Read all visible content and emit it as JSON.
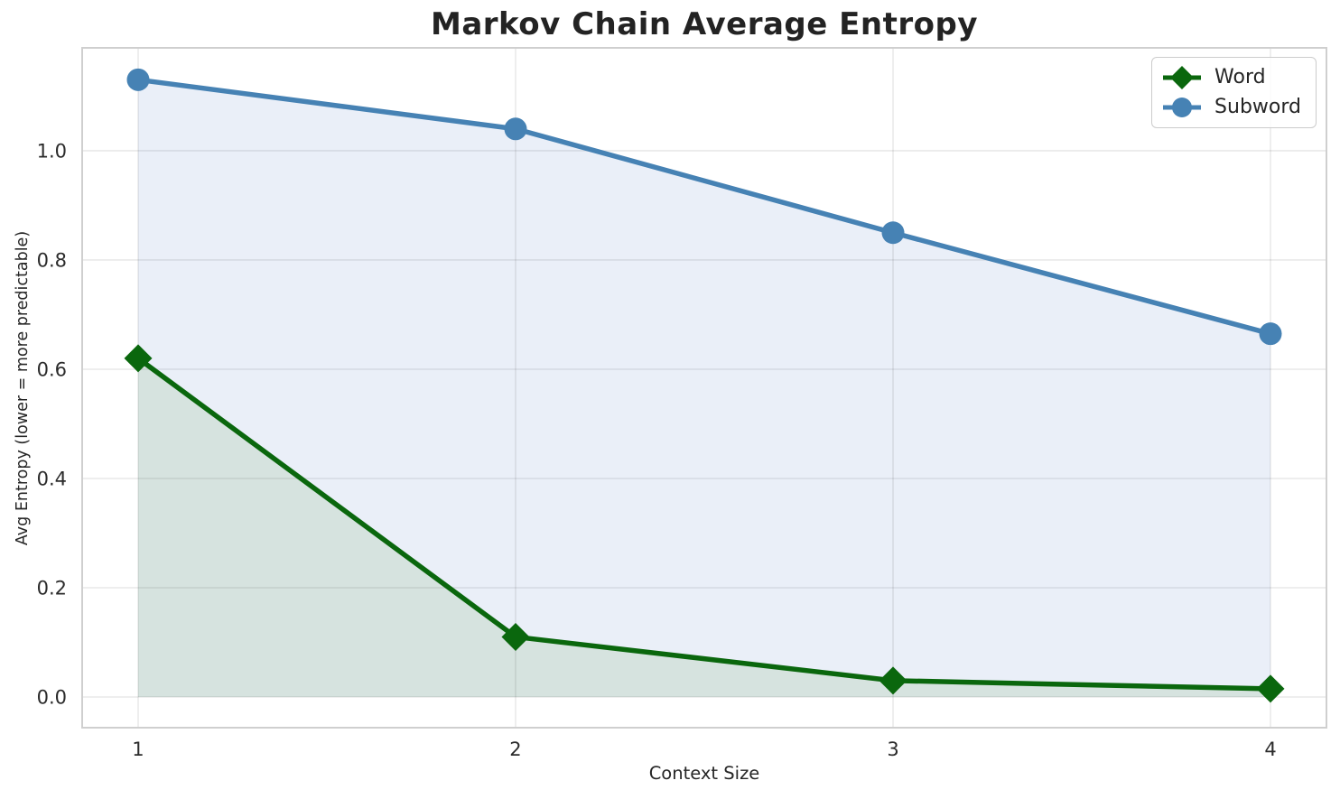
{
  "chart_data": {
    "type": "line",
    "title": "Markov Chain Average Entropy",
    "xlabel": "Context Size",
    "ylabel": "Avg Entropy (lower = more predictable)",
    "x": [
      1,
      2,
      3,
      4
    ],
    "series": [
      {
        "name": "Word",
        "values": [
          0.62,
          0.11,
          0.03,
          0.015
        ],
        "color": "#0a670d",
        "fill_color": "#d6e3df",
        "marker": "diamond"
      },
      {
        "name": "Subword",
        "values": [
          1.13,
          1.04,
          0.85,
          0.665
        ],
        "color": "#4682b4",
        "fill_color": "#eaeff8",
        "marker": "circle"
      }
    ],
    "xticks": {
      "values": [
        1,
        2,
        3,
        4
      ],
      "labels": [
        "1",
        "2",
        "3",
        "4"
      ]
    },
    "yticks": {
      "values": [
        0.0,
        0.2,
        0.4,
        0.6,
        0.8,
        1.0
      ],
      "labels": [
        "0.0",
        "0.2",
        "0.4",
        "0.6",
        "0.8",
        "1.0"
      ]
    },
    "xlim": [
      0.8517,
      4.1483
    ],
    "ylim": [
      -0.0562,
      1.1884
    ],
    "grid": true,
    "legend_position": "upper right",
    "grid_color": "rgba(0,0,0,0.085)",
    "spine_color": "#cfcfcf",
    "text_color": "#2b2b2b"
  }
}
